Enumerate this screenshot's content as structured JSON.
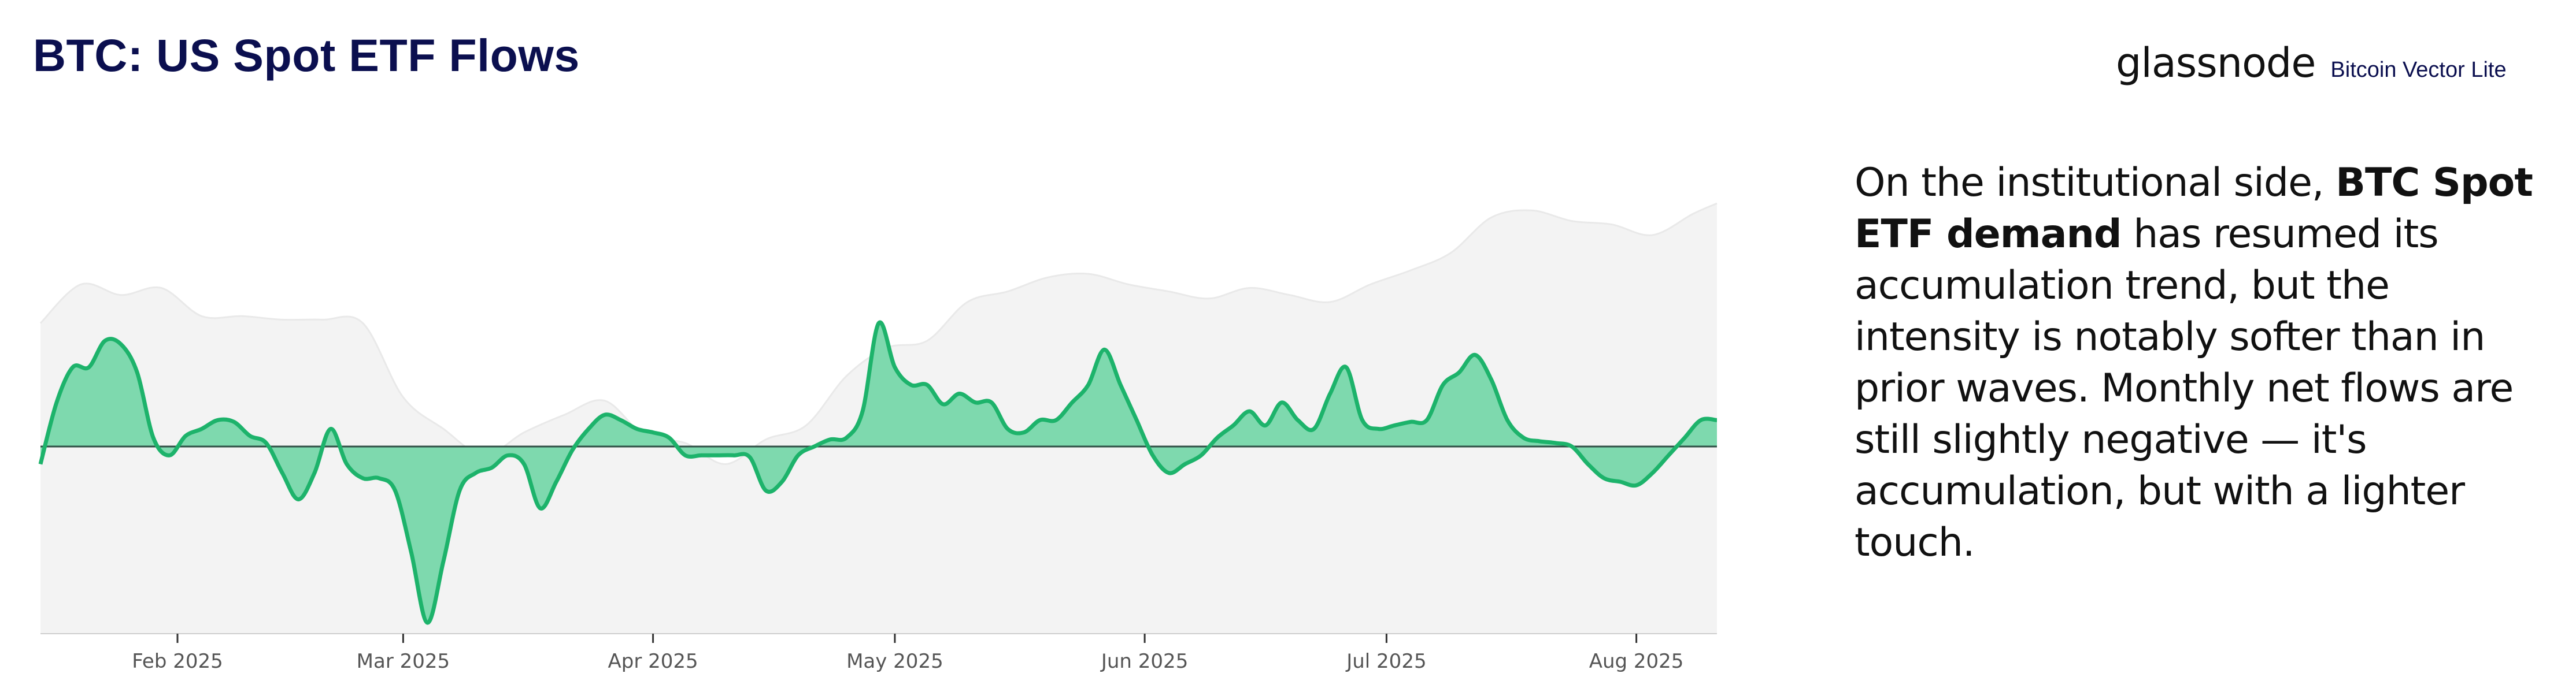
{
  "header": {
    "title": "BTC: US Spot ETF Flows",
    "brand": "glassnode",
    "brand_sub": "Bitcoin Vector Lite"
  },
  "commentary": {
    "part1": "On the institutional side, ",
    "bold": "BTC Spot ETF demand",
    "part2": " has resumed its accumulation trend, but the intensity is notably softer than in prior waves. Monthly net flows are still slightly negative — it's accumulation, but with a lighter touch."
  },
  "colors": {
    "flow_line": "#1db36b",
    "flow_fill": "#7ed9ae",
    "price_fill": "#f3f3f3",
    "price_line": "#e9e9e9",
    "baseline": "#2f4f45",
    "axis": "#333333",
    "title": "#0b0f4f"
  },
  "chart_data": {
    "type": "area",
    "xlim": [
      "2025-01-15",
      "2025-08-11"
    ],
    "x_ticks": [
      "Feb 2025",
      "Mar 2025",
      "Apr 2025",
      "May 2025",
      "Jun 2025",
      "Jul 2025",
      "Aug 2025"
    ],
    "x_tick_dates": [
      "2025-02-01",
      "2025-03-01",
      "2025-04-01",
      "2025-05-01",
      "2025-06-01",
      "2025-07-01",
      "2025-08-01"
    ],
    "y_axis_labels": "none",
    "y_relative_range": [
      -1,
      1
    ],
    "grid": false,
    "legend": "none",
    "series": [
      {
        "role": "net flow",
        "dates": [
          "2025-01-15",
          "2025-01-17",
          "2025-01-19",
          "2025-01-21",
          "2025-01-23",
          "2025-01-25",
          "2025-01-27",
          "2025-01-29",
          "2025-01-31",
          "2025-02-02",
          "2025-02-04",
          "2025-02-06",
          "2025-02-08",
          "2025-02-10",
          "2025-02-12",
          "2025-02-14",
          "2025-02-16",
          "2025-02-18",
          "2025-02-20",
          "2025-02-22",
          "2025-02-24",
          "2025-02-26",
          "2025-02-28",
          "2025-03-02",
          "2025-03-04",
          "2025-03-06",
          "2025-03-08",
          "2025-03-10",
          "2025-03-12",
          "2025-03-14",
          "2025-03-16",
          "2025-03-18",
          "2025-03-20",
          "2025-03-22",
          "2025-03-24",
          "2025-03-26",
          "2025-03-28",
          "2025-03-30",
          "2025-04-01",
          "2025-04-03",
          "2025-04-05",
          "2025-04-07",
          "2025-04-09",
          "2025-04-11",
          "2025-04-13",
          "2025-04-15",
          "2025-04-17",
          "2025-04-19",
          "2025-04-21",
          "2025-04-23",
          "2025-04-25",
          "2025-04-27",
          "2025-04-29",
          "2025-05-01",
          "2025-05-03",
          "2025-05-05",
          "2025-05-07",
          "2025-05-09",
          "2025-05-11",
          "2025-05-13",
          "2025-05-15",
          "2025-05-17",
          "2025-05-19",
          "2025-05-21",
          "2025-05-23",
          "2025-05-25",
          "2025-05-27",
          "2025-05-29",
          "2025-05-31",
          "2025-06-02",
          "2025-06-04",
          "2025-06-06",
          "2025-06-08",
          "2025-06-10",
          "2025-06-12",
          "2025-06-14",
          "2025-06-16",
          "2025-06-18",
          "2025-06-20",
          "2025-06-22",
          "2025-06-24",
          "2025-06-26",
          "2025-06-28",
          "2025-06-30",
          "2025-07-02",
          "2025-07-04",
          "2025-07-06",
          "2025-07-08",
          "2025-07-10",
          "2025-07-12",
          "2025-07-14",
          "2025-07-16",
          "2025-07-18",
          "2025-07-20",
          "2025-07-22",
          "2025-07-24",
          "2025-07-26",
          "2025-07-28",
          "2025-07-30",
          "2025-08-01",
          "2025-08-03",
          "2025-08-05",
          "2025-08-07",
          "2025-08-09",
          "2025-08-11"
        ],
        "values": [
          -0.1,
          0.25,
          0.45,
          0.45,
          0.6,
          0.58,
          0.42,
          0.05,
          -0.05,
          0.06,
          0.1,
          0.15,
          0.14,
          0.06,
          0.02,
          -0.15,
          -0.3,
          -0.15,
          0.1,
          -0.1,
          -0.18,
          -0.18,
          -0.25,
          -0.6,
          -1.0,
          -0.65,
          -0.25,
          -0.15,
          -0.12,
          -0.05,
          -0.1,
          -0.35,
          -0.2,
          -0.02,
          0.1,
          0.18,
          0.15,
          0.1,
          0.08,
          0.05,
          -0.05,
          -0.05,
          -0.05,
          -0.05,
          -0.06,
          -0.25,
          -0.2,
          -0.05,
          0.0,
          0.04,
          0.05,
          0.2,
          0.7,
          0.45,
          0.35,
          0.35,
          0.24,
          0.3,
          0.25,
          0.25,
          0.1,
          0.08,
          0.15,
          0.15,
          0.25,
          0.35,
          0.55,
          0.35,
          0.15,
          -0.05,
          -0.15,
          -0.1,
          -0.05,
          0.05,
          0.12,
          0.2,
          0.12,
          0.25,
          0.15,
          0.1,
          0.3,
          0.45,
          0.15,
          0.1,
          0.12,
          0.14,
          0.15,
          0.35,
          0.42,
          0.52,
          0.38,
          0.15,
          0.05,
          0.03,
          0.02,
          0.0,
          -0.1,
          -0.18,
          -0.2,
          -0.22,
          -0.15,
          -0.05,
          0.05,
          0.15,
          0.15
        ]
      },
      {
        "role": "BTC price (background, relative scale)",
        "dates": [
          "2025-01-15",
          "2025-01-20",
          "2025-01-25",
          "2025-01-30",
          "2025-02-04",
          "2025-02-09",
          "2025-02-14",
          "2025-02-19",
          "2025-02-24",
          "2025-03-01",
          "2025-03-06",
          "2025-03-11",
          "2025-03-16",
          "2025-03-21",
          "2025-03-26",
          "2025-03-31",
          "2025-04-05",
          "2025-04-10",
          "2025-04-15",
          "2025-04-20",
          "2025-04-25",
          "2025-04-30",
          "2025-05-05",
          "2025-05-10",
          "2025-05-15",
          "2025-05-20",
          "2025-05-25",
          "2025-05-30",
          "2025-06-04",
          "2025-06-09",
          "2025-06-14",
          "2025-06-19",
          "2025-06-24",
          "2025-06-29",
          "2025-07-04",
          "2025-07-09",
          "2025-07-14",
          "2025-07-19",
          "2025-07-24",
          "2025-07-29",
          "2025-08-03",
          "2025-08-08",
          "2025-08-11"
        ],
        "values": [
          0.7,
          0.92,
          0.86,
          0.9,
          0.74,
          0.74,
          0.72,
          0.72,
          0.7,
          0.28,
          0.1,
          -0.05,
          0.08,
          0.18,
          0.26,
          0.06,
          0.02,
          -0.1,
          0.04,
          0.12,
          0.4,
          0.56,
          0.6,
          0.82,
          0.88,
          0.96,
          0.98,
          0.92,
          0.88,
          0.84,
          0.9,
          0.86,
          0.82,
          0.92,
          1.0,
          1.1,
          1.3,
          1.34,
          1.28,
          1.26,
          1.2,
          1.32,
          1.38
        ]
      }
    ]
  }
}
